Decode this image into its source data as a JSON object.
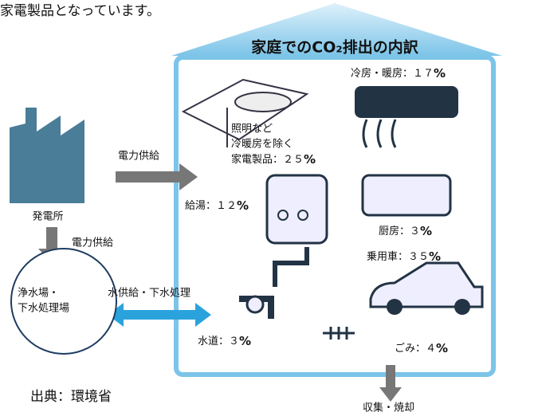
{
  "intro": "家電製品となっています。",
  "title": "家庭でのCO₂排出の内訳",
  "items": [
    {
      "label": "冷房・暖房：",
      "value": "１７",
      "unit": "%"
    },
    {
      "lines": [
        "照明など",
        "冷暖房を除く"
      ],
      "label": "家電製品：",
      "value": "２５",
      "unit": "%"
    },
    {
      "label": "給湯：",
      "value": "１２",
      "unit": "%"
    },
    {
      "label": "厨房：",
      "value": "３",
      "unit": "%"
    },
    {
      "label": "乗用車：",
      "value": "３５",
      "unit": "%"
    },
    {
      "label": "水道：",
      "value": "３",
      "unit": "%"
    },
    {
      "label": "ごみ：",
      "value": "４",
      "unit": "%"
    }
  ],
  "power_plant": "発電所",
  "power_supply_right": "電力供給",
  "power_supply_down": "電力供給",
  "water_plant": [
    "浄水場・",
    "下水処理場"
  ],
  "water_flow": "水供給・下水処理",
  "waste": "収集・焼却",
  "source": "出典：環境省"
}
